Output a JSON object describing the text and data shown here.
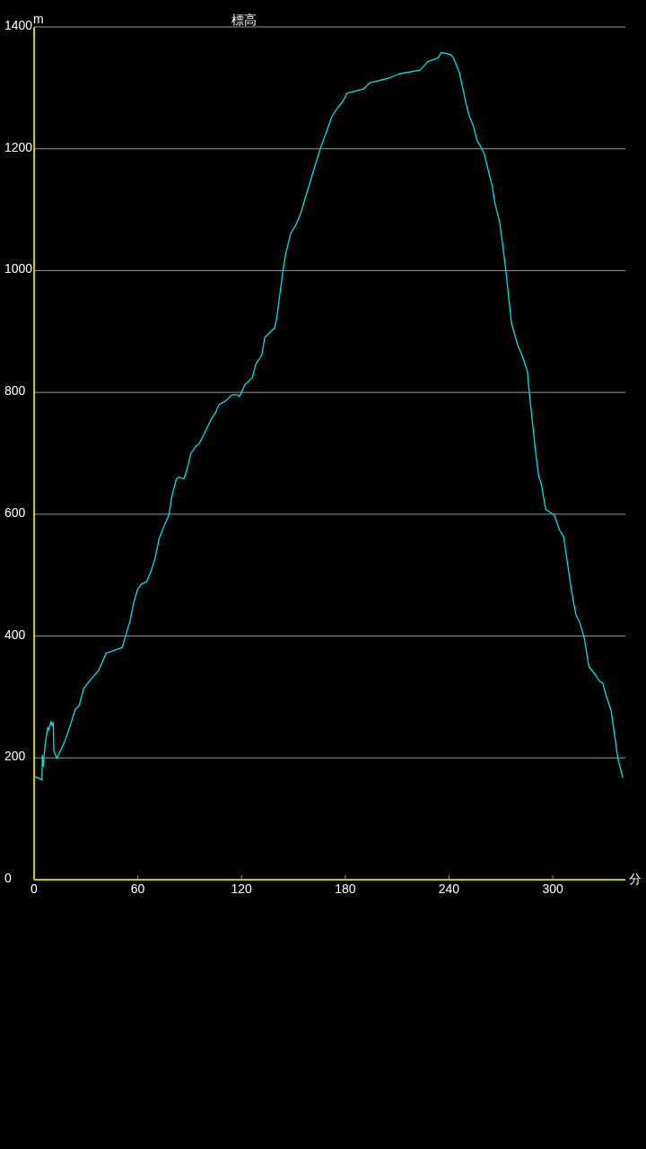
{
  "chart_data": {
    "type": "line",
    "title": "標高",
    "xlabel": "分",
    "ylabel": "m",
    "x": [
      0,
      4.5,
      4.8,
      5.3,
      5.8,
      6.6,
      7.9,
      8.5,
      9.7,
      10.4,
      11.1,
      11.4,
      12.3,
      13.1,
      15.7,
      17.5,
      20.1,
      23.9,
      26.1,
      28.7,
      32.2,
      37.4,
      41.7,
      50.9,
      52.9,
      55.5,
      57.8,
      59.8,
      61.9,
      65,
      67.6,
      70.2,
      72.3,
      75.1,
      78,
      79.8,
      82.3,
      83.7,
      86.7,
      88.4,
      90.7,
      93.6,
      95.3,
      97.9,
      102.2,
      104.8,
      106.9,
      110.9,
      114.3,
      117.8,
      118.7,
      122.1,
      126.2,
      128.2,
      131.7,
      133.4,
      139.1,
      140.3,
      143.8,
      145.5,
      148.4,
      151.6,
      154.1,
      155.9,
      161.1,
      165.4,
      172.3,
      175.4,
      178.4,
      181,
      190.5,
      194,
      205.2,
      211.2,
      223.3,
      227.7,
      233.7,
      235.5,
      240.7,
      242.4,
      245.9,
      250.2,
      251.6,
      254,
      256.3,
      258.8,
      260.5,
      262.3,
      264.9,
      266.6,
      269.2,
      270.9,
      273,
      276.1,
      279.6,
      283,
      285.3,
      286.5,
      289.9,
      291.9,
      293.3,
      295.9,
      300.9,
      303.9,
      306.3,
      310.8,
      313.4,
      315.8,
      318.3,
      320.9,
      324.8,
      326.9,
      328.9,
      330.9,
      333.8,
      337.8,
      340.5
    ],
    "values": [
      170,
      164,
      204,
      186,
      205,
      226,
      250,
      246,
      260,
      253,
      259,
      211,
      206,
      199,
      214,
      226,
      246,
      280,
      286,
      314,
      327,
      344,
      372,
      381,
      400,
      425,
      457,
      476,
      485,
      489,
      506,
      530,
      560,
      580,
      599,
      631,
      658,
      661,
      658,
      673,
      700,
      712,
      715,
      729,
      755,
      766,
      780,
      786,
      796,
      796,
      793,
      813,
      824,
      846,
      861,
      890,
      906,
      921,
      997,
      1027,
      1061,
      1076,
      1093,
      1110,
      1159,
      1199,
      1253,
      1267,
      1277,
      1291,
      1298,
      1308,
      1316,
      1323,
      1329,
      1343,
      1349,
      1358,
      1355,
      1350,
      1326,
      1270,
      1255,
      1238,
      1213,
      1201,
      1191,
      1169,
      1140,
      1110,
      1081,
      1046,
      997,
      914,
      879,
      855,
      835,
      798,
      707,
      662,
      651,
      608,
      599,
      574,
      563,
      475,
      435,
      421,
      396,
      350,
      336,
      326,
      323,
      302,
      277,
      197,
      168
    ],
    "color": "#00e0e0",
    "xlim": [
      0,
      342
    ],
    "ylim": [
      0,
      1400
    ],
    "xticks": [
      0,
      60,
      120,
      180,
      240,
      300
    ],
    "yticks": [
      0,
      200,
      400,
      600,
      800,
      1000,
      1200,
      1400
    ],
    "grid": "y"
  }
}
